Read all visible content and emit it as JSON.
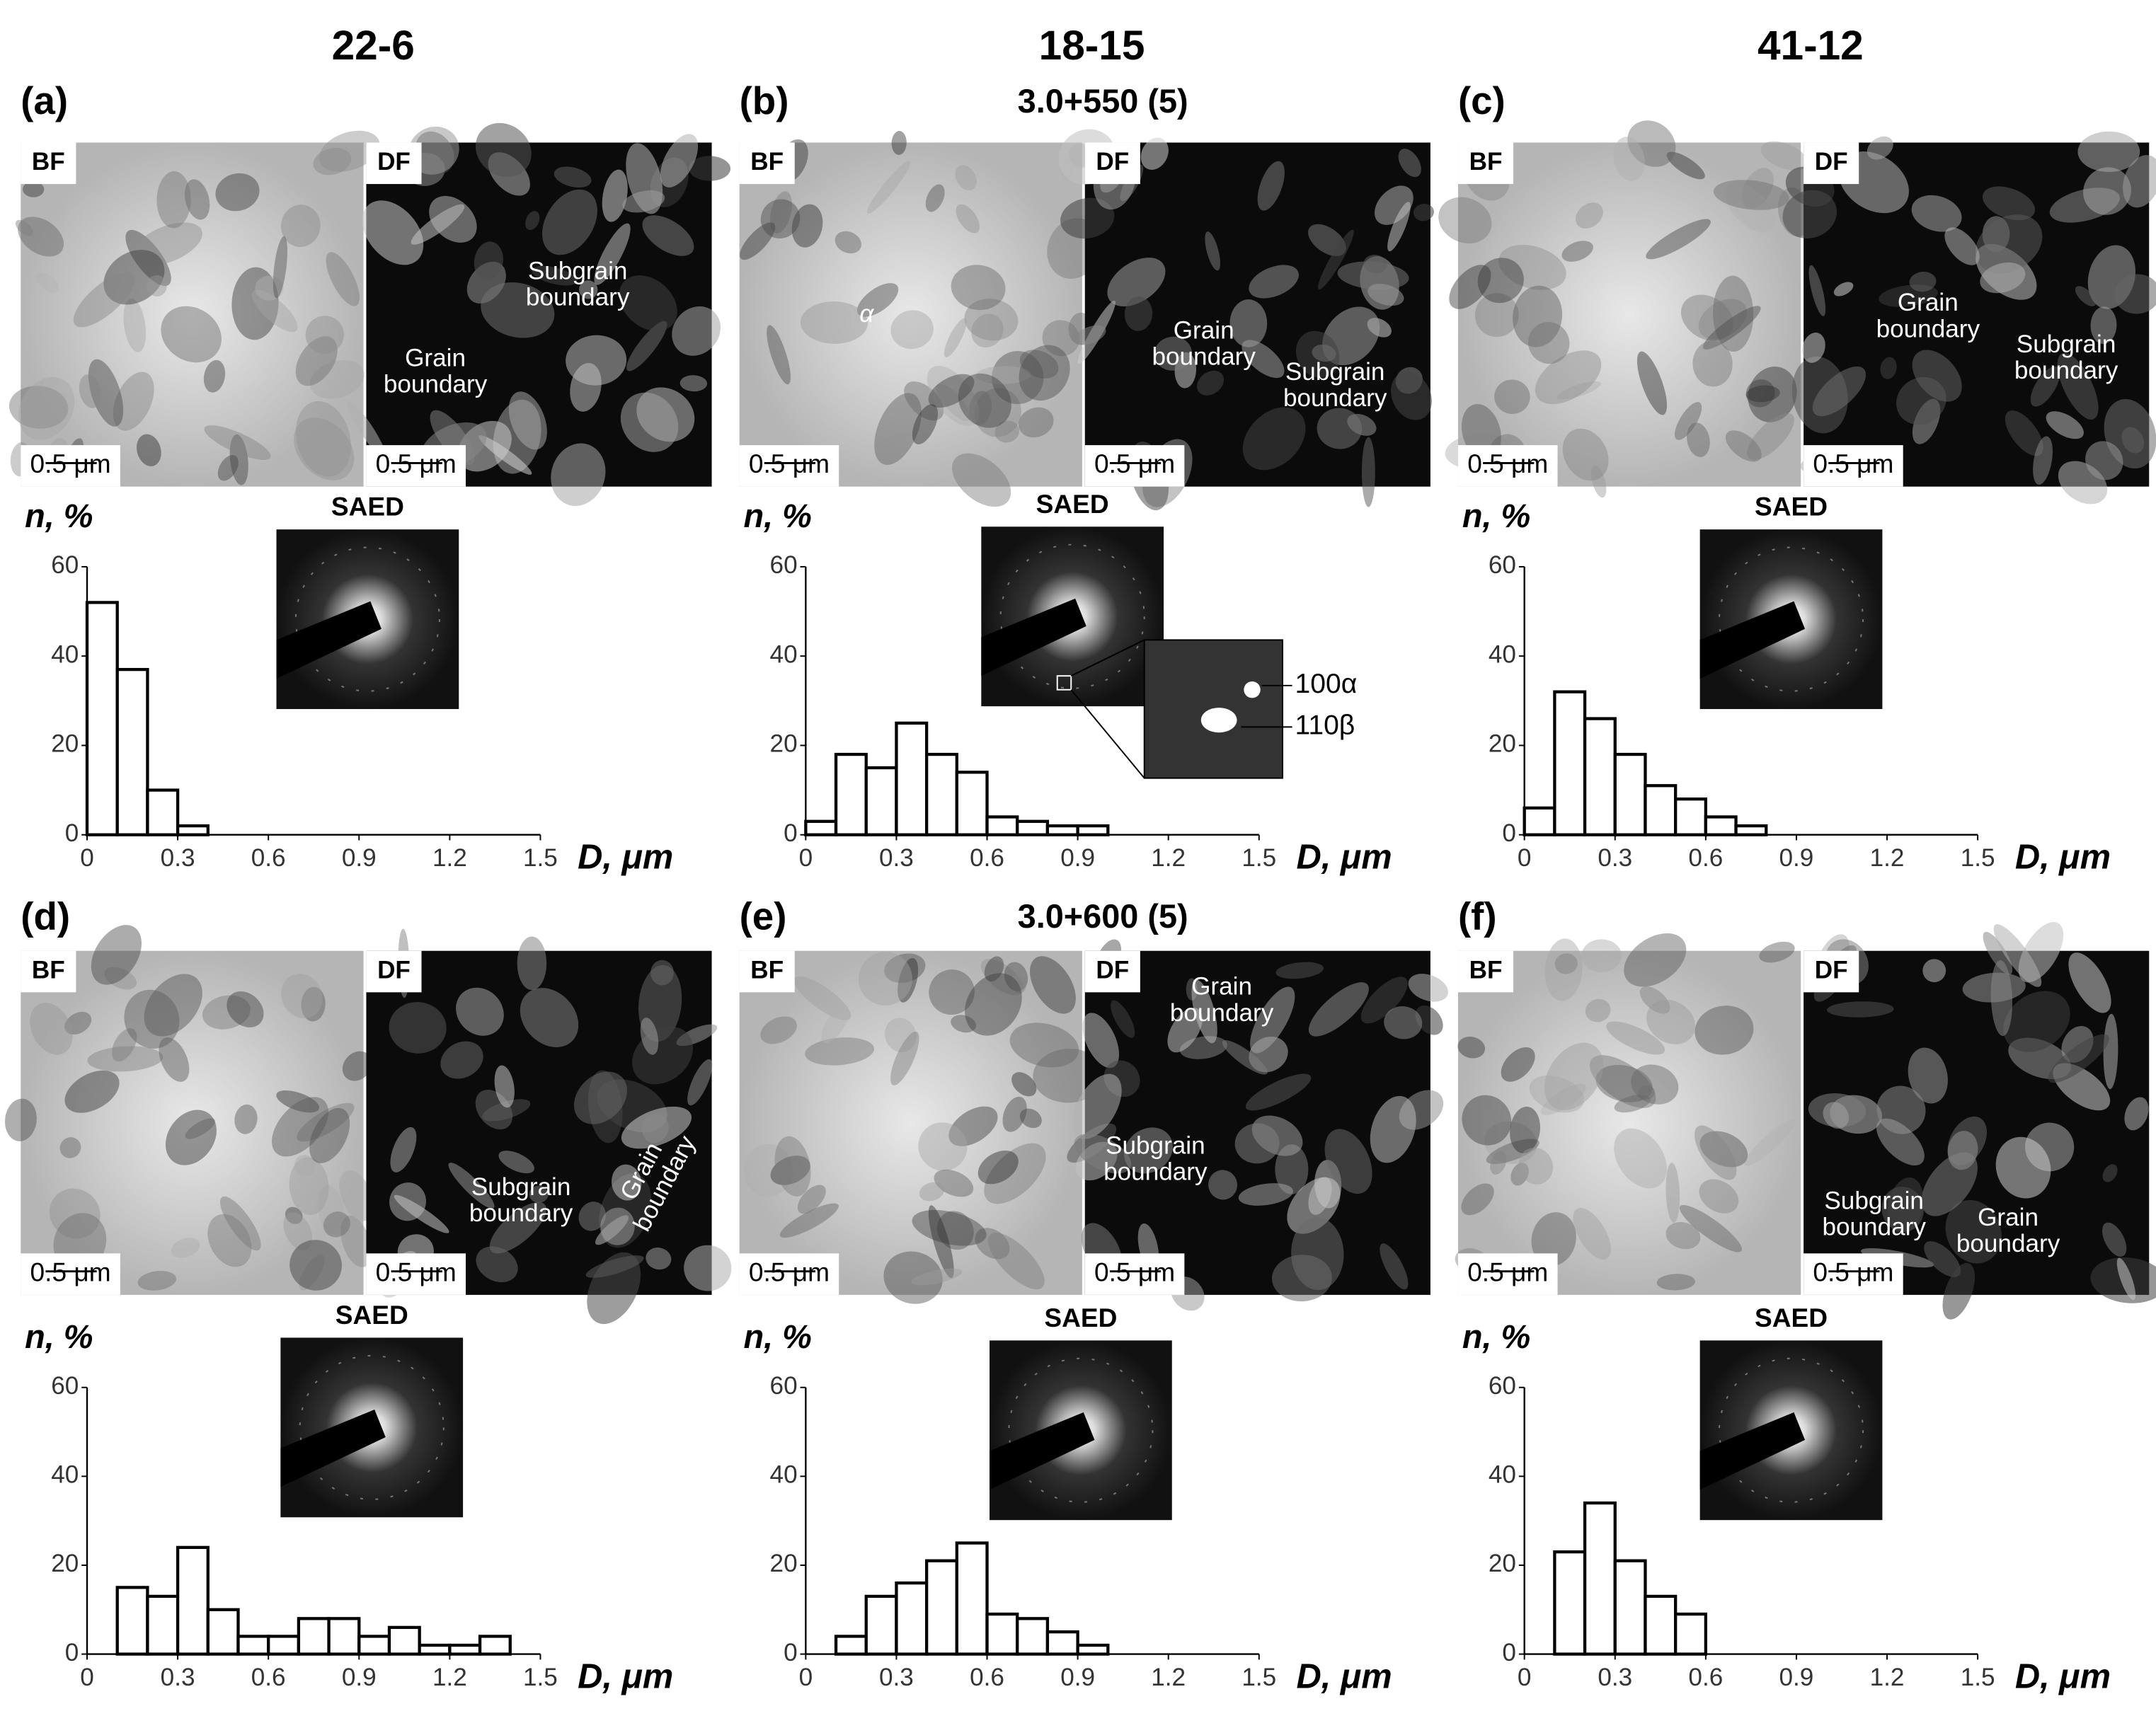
{
  "columns": [
    "22-6",
    "18-15",
    "41-12"
  ],
  "chart_data": [
    {
      "type": "histogram",
      "panel": "(a)",
      "bf_label": "BF",
      "df_label": "DF",
      "scale_label": "0.5 μm",
      "saed_label": "SAED",
      "df_annotations": [
        [
          "Subgrain",
          "boundary"
        ],
        [
          "Grain",
          "boundary"
        ]
      ],
      "bins": [
        0,
        0.1,
        0.2,
        0.3,
        0.4
      ],
      "values": [
        52,
        37,
        10,
        2
      ],
      "xlim": [
        0,
        1.5
      ],
      "ylim": [
        0,
        60
      ],
      "xticks": [
        0,
        0.3,
        0.6,
        0.9,
        1.2,
        1.5
      ],
      "yticks": [
        0,
        20,
        40,
        60
      ],
      "xlabel": "D, μm",
      "ylabel": "n, %"
    },
    {
      "type": "histogram",
      "panel": "(b)",
      "subtitle": "3.0+550 (5)",
      "bf_label": "BF",
      "df_label": "DF",
      "scale_label": "0.5 μm",
      "saed_label": "SAED",
      "bf_annotations": [
        [
          "α"
        ]
      ],
      "df_annotations": [
        [
          "Grain",
          "boundary"
        ],
        [
          "Subgrain",
          "boundary"
        ]
      ],
      "inset_labels": [
        "100α",
        "110β"
      ],
      "bins": [
        0,
        0.1,
        0.2,
        0.3,
        0.4,
        0.5,
        0.6,
        0.7,
        0.8,
        0.9,
        1.0
      ],
      "values": [
        3,
        18,
        15,
        25,
        18,
        14,
        4,
        3,
        2,
        2
      ],
      "xlim": [
        0,
        1.5
      ],
      "ylim": [
        0,
        60
      ],
      "xticks": [
        0,
        0.3,
        0.6,
        0.9,
        1.2,
        1.5
      ],
      "yticks": [
        0,
        20,
        40,
        60
      ],
      "xlabel": "D, μm",
      "ylabel": "n, %"
    },
    {
      "type": "histogram",
      "panel": "(c)",
      "bf_label": "BF",
      "df_label": "DF",
      "scale_label": "0.5 μm",
      "saed_label": "SAED",
      "df_annotations": [
        [
          "Grain",
          "boundary"
        ],
        [
          "Subgrain",
          "boundary"
        ]
      ],
      "bins": [
        0,
        0.1,
        0.2,
        0.3,
        0.4,
        0.5,
        0.6,
        0.7,
        0.8
      ],
      "values": [
        6,
        32,
        26,
        18,
        11,
        8,
        4,
        2
      ],
      "xlim": [
        0,
        1.5
      ],
      "ylim": [
        0,
        60
      ],
      "xticks": [
        0,
        0.3,
        0.6,
        0.9,
        1.2,
        1.5
      ],
      "yticks": [
        0,
        20,
        40,
        60
      ],
      "xlabel": "D, μm",
      "ylabel": "n, %"
    },
    {
      "type": "histogram",
      "panel": "(d)",
      "bf_label": "BF",
      "df_label": "DF",
      "scale_label": "0.5 μm",
      "saed_label": "SAED",
      "df_annotations": [
        [
          "Subgrain",
          "boundary"
        ],
        [
          "Grain",
          "boundary"
        ]
      ],
      "bins": [
        0.1,
        0.2,
        0.3,
        0.4,
        0.5,
        0.6,
        0.7,
        0.8,
        0.9,
        1.0,
        1.1,
        1.2,
        1.3,
        1.4
      ],
      "values": [
        15,
        13,
        24,
        10,
        4,
        4,
        8,
        8,
        4,
        6,
        2,
        2,
        4
      ],
      "xlim": [
        0,
        1.5
      ],
      "ylim": [
        0,
        60
      ],
      "xticks": [
        0,
        0.3,
        0.6,
        0.9,
        1.2,
        1.5
      ],
      "yticks": [
        0,
        20,
        40,
        60
      ],
      "xlabel": "D, μm",
      "ylabel": "n, %"
    },
    {
      "type": "histogram",
      "panel": "(e)",
      "subtitle": "3.0+600 (5)",
      "bf_label": "BF",
      "df_label": "DF",
      "scale_label": "0.5 μm",
      "saed_label": "SAED",
      "df_annotations": [
        [
          "Grain",
          "boundary"
        ],
        [
          "Subgrain",
          "boundary"
        ]
      ],
      "bins": [
        0.1,
        0.2,
        0.3,
        0.4,
        0.5,
        0.6,
        0.7,
        0.8,
        0.9,
        1.0
      ],
      "values": [
        4,
        13,
        16,
        21,
        25,
        9,
        8,
        5,
        2
      ],
      "xlim": [
        0,
        1.5
      ],
      "ylim": [
        0,
        60
      ],
      "xticks": [
        0,
        0.3,
        0.6,
        0.9,
        1.2,
        1.5
      ],
      "yticks": [
        0,
        20,
        40,
        60
      ],
      "xlabel": "D, μm",
      "ylabel": "n, %"
    },
    {
      "type": "histogram",
      "panel": "(f)",
      "bf_label": "BF",
      "df_label": "DF",
      "scale_label": "0.5 μm",
      "saed_label": "SAED",
      "df_annotations": [
        [
          "Subgrain",
          "boundary"
        ],
        [
          "Grain",
          "boundary"
        ]
      ],
      "bins": [
        0.1,
        0.2,
        0.3,
        0.4,
        0.5,
        0.6
      ],
      "values": [
        23,
        34,
        21,
        13,
        9
      ],
      "xlim": [
        0,
        1.5
      ],
      "ylim": [
        0,
        60
      ],
      "xticks": [
        0,
        0.3,
        0.6,
        0.9,
        1.2,
        1.5
      ],
      "yticks": [
        0,
        20,
        40,
        60
      ],
      "xlabel": "D, μm",
      "ylabel": "n, %"
    }
  ]
}
